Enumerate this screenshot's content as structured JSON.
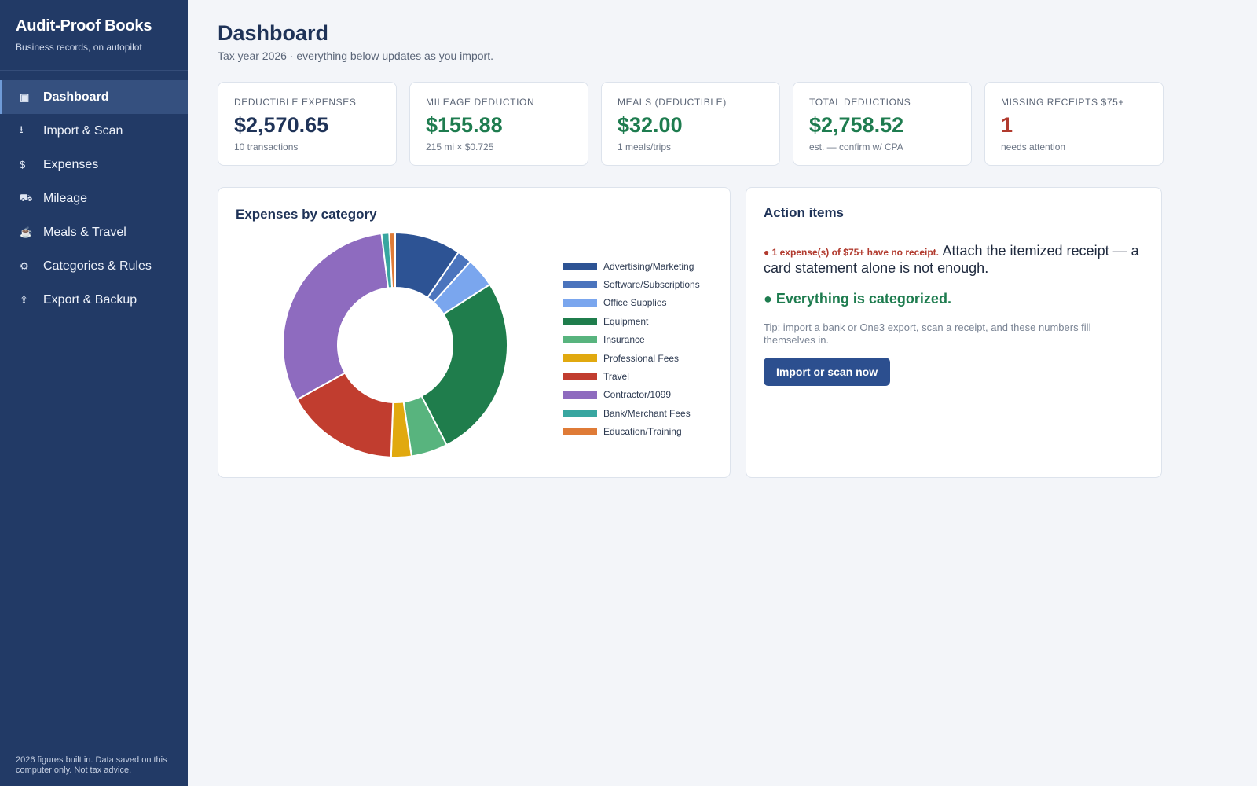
{
  "brand": {
    "title": "Audit-Proof Books",
    "subtitle": "Business records, on autopilot"
  },
  "nav": [
    {
      "icon": "▣",
      "label": "Dashboard",
      "active": true
    },
    {
      "icon": "⭳",
      "label": "Import & Scan"
    },
    {
      "icon": "$",
      "label": "Expenses"
    },
    {
      "icon": "⛟",
      "label": "Mileage"
    },
    {
      "icon": "☕",
      "label": "Meals & Travel"
    },
    {
      "icon": "⚙",
      "label": "Categories & Rules"
    },
    {
      "icon": "⇪",
      "label": "Export & Backup"
    }
  ],
  "sidebar_footer": "2026 figures built in. Data saved on this computer only. Not tax advice.",
  "header": {
    "title": "Dashboard",
    "subtitle": "Tax year 2026 · everything below updates as you import."
  },
  "cards": [
    {
      "label": "Deductible expenses",
      "value": "$2,570.65",
      "note": "10 transactions",
      "tone": "navy"
    },
    {
      "label": "Mileage deduction",
      "value": "$155.88",
      "note": "215 mi × $0.725",
      "tone": "green"
    },
    {
      "label": "Meals (deductible)",
      "value": "$32.00",
      "note": "1 meals/trips",
      "tone": "green"
    },
    {
      "label": "Total deductions",
      "value": "$2,758.52",
      "note": "est. — confirm w/ CPA",
      "tone": "green"
    },
    {
      "label": "Missing receipts $75+",
      "value": "1",
      "note": "needs attention",
      "tone": "red"
    }
  ],
  "chart_panel": {
    "title": "Expenses by category"
  },
  "chart_data": {
    "type": "pie",
    "title": "Expenses by category",
    "donut": true,
    "legend_position": "right",
    "categories": [
      "Advertising/Marketing",
      "Software/Subscriptions",
      "Office Supplies",
      "Equipment",
      "Insurance",
      "Professional Fees",
      "Travel",
      "Contractor/1099",
      "Bank/Merchant Fees",
      "Education/Training"
    ],
    "values": [
      245,
      55,
      110,
      680,
      135,
      75,
      420,
      800,
      28,
      22
    ],
    "colors": [
      "#2d5394",
      "#4b74bd",
      "#7aa6ee",
      "#1f7d4c",
      "#58b47e",
      "#e1a90f",
      "#c13d2f",
      "#8e6bbf",
      "#38a6a0",
      "#df7b37"
    ]
  },
  "actions": {
    "title": "Action items",
    "warning_lead": "● 1 expense(s) of $75+ have no receipt.",
    "warning_text": "Attach the itemized receipt — a card statement alone is not enough.",
    "ok_text": "● Everything is categorized.",
    "tip": "Tip: import a bank or One3 export, scan a receipt, and these numbers fill themselves in.",
    "cta_label": "Import or scan now"
  }
}
